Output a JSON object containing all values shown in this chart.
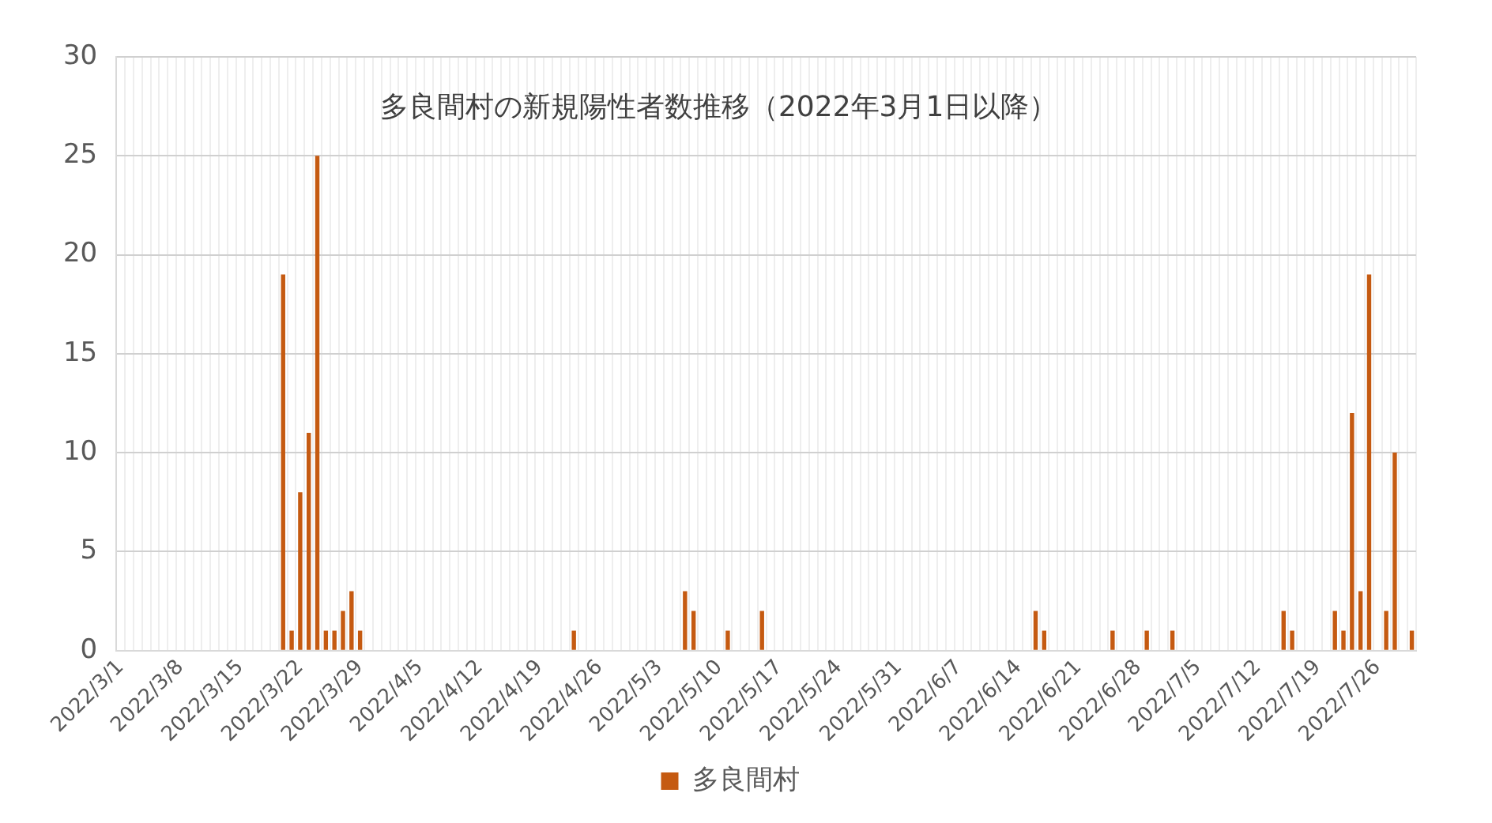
{
  "chart_data": {
    "type": "bar",
    "title": "多良間村の新規陽性者数推移（2022年3月1日以降）",
    "categories": [
      "2022/3/1",
      null,
      null,
      null,
      null,
      null,
      null,
      "2022/3/8",
      null,
      null,
      null,
      null,
      null,
      null,
      "2022/3/15",
      null,
      null,
      null,
      null,
      null,
      null,
      "2022/3/22",
      null,
      null,
      null,
      null,
      null,
      null,
      "2022/3/29",
      null,
      null,
      null,
      null,
      null,
      null,
      "2022/4/5",
      null,
      null,
      null,
      null,
      null,
      null,
      "2022/4/12",
      null,
      null,
      null,
      null,
      null,
      null,
      "2022/4/19",
      null,
      null,
      null,
      null,
      null,
      null,
      "2022/4/26",
      null,
      null,
      null,
      null,
      null,
      null,
      "2022/5/3",
      null,
      null,
      null,
      null,
      null,
      null,
      "2022/5/10",
      null,
      null,
      null,
      null,
      null,
      null,
      "2022/5/17",
      null,
      null,
      null,
      null,
      null,
      null,
      "2022/5/24",
      null,
      null,
      null,
      null,
      null,
      null,
      "2022/5/31",
      null,
      null,
      null,
      null,
      null,
      null,
      "2022/6/7",
      null,
      null,
      null,
      null,
      null,
      null,
      "2022/6/14",
      null,
      null,
      null,
      null,
      null,
      null,
      "2022/6/21",
      null,
      null,
      null,
      null,
      null,
      null,
      "2022/6/28",
      null,
      null,
      null,
      null,
      null,
      null,
      "2022/7/5",
      null,
      null,
      null,
      null,
      null,
      null,
      "2022/7/12",
      null,
      null,
      null,
      null,
      null,
      null,
      "2022/7/19",
      null,
      null,
      null,
      null,
      null,
      null,
      "2022/7/26",
      null,
      null,
      null,
      null
    ],
    "series": [
      {
        "name": "多良間村",
        "color": "#c55a11",
        "values": [
          0,
          0,
          0,
          0,
          0,
          0,
          0,
          0,
          0,
          0,
          0,
          0,
          0,
          0,
          0,
          0,
          0,
          0,
          0,
          19,
          1,
          8,
          11,
          25,
          1,
          1,
          2,
          3,
          1,
          0,
          0,
          0,
          0,
          0,
          0,
          0,
          0,
          0,
          0,
          0,
          0,
          0,
          0,
          0,
          0,
          0,
          0,
          0,
          0,
          0,
          0,
          0,
          0,
          1,
          0,
          0,
          0,
          0,
          0,
          0,
          0,
          0,
          0,
          0,
          0,
          0,
          3,
          2,
          0,
          0,
          0,
          1,
          0,
          0,
          0,
          2,
          0,
          0,
          0,
          0,
          0,
          0,
          0,
          0,
          0,
          0,
          0,
          0,
          0,
          0,
          0,
          0,
          0,
          0,
          0,
          0,
          0,
          0,
          0,
          0,
          0,
          0,
          0,
          0,
          0,
          0,
          0,
          2,
          1,
          0,
          0,
          0,
          0,
          0,
          0,
          0,
          1,
          0,
          0,
          0,
          1,
          0,
          0,
          1,
          0,
          0,
          0,
          0,
          0,
          0,
          0,
          0,
          0,
          0,
          0,
          0,
          2,
          1,
          0,
          0,
          0,
          0,
          2,
          1,
          12,
          3,
          19,
          0,
          2,
          10,
          0,
          1
        ]
      }
    ],
    "ylim": [
      0,
      30
    ],
    "yticks": [
      0,
      5,
      10,
      15,
      20,
      25,
      30
    ],
    "grid": true,
    "legend": "bottom"
  }
}
